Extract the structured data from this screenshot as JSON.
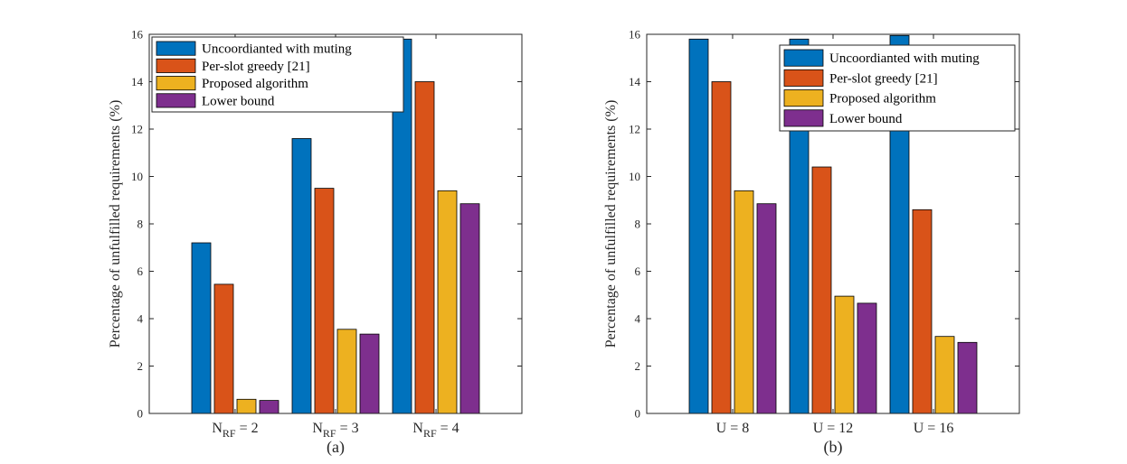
{
  "chart_data": [
    {
      "type": "bar",
      "panel_label": "(a)",
      "ylabel": "Percentage of unfulfilled requirements (%)",
      "xlabel": "",
      "ylim": [
        0,
        16
      ],
      "yticks": [
        0,
        2,
        4,
        6,
        8,
        10,
        12,
        14,
        16
      ],
      "legend_position": "top-left",
      "categories": [
        {
          "base": "N",
          "sub": "RF",
          "rest": " = 2"
        },
        {
          "base": "N",
          "sub": "RF",
          "rest": " = 3"
        },
        {
          "base": "N",
          "sub": "RF",
          "rest": " = 4"
        }
      ],
      "series": [
        {
          "name": "Uncoordianted with muting",
          "color": "#0072BD",
          "values": [
            7.2,
            11.6,
            15.8
          ]
        },
        {
          "name": "Per-slot greedy [21]",
          "color": "#D95319",
          "values": [
            5.45,
            9.5,
            14.0
          ]
        },
        {
          "name": "Proposed algorithm",
          "color": "#EDB120",
          "values": [
            0.6,
            3.55,
            9.4
          ]
        },
        {
          "name": "Lower bound",
          "color": "#7E2F8E",
          "values": [
            0.55,
            3.35,
            8.85
          ]
        }
      ]
    },
    {
      "type": "bar",
      "panel_label": "(b)",
      "ylabel": "Percentage of unfulfilled requirements (%)",
      "xlabel": "",
      "ylim": [
        0,
        16
      ],
      "yticks": [
        0,
        2,
        4,
        6,
        8,
        10,
        12,
        14,
        16
      ],
      "legend_position": "top-right",
      "categories": [
        {
          "base": "U = 8",
          "sub": "",
          "rest": ""
        },
        {
          "base": "U = 12",
          "sub": "",
          "rest": ""
        },
        {
          "base": "U = 16",
          "sub": "",
          "rest": ""
        }
      ],
      "series": [
        {
          "name": "Uncoordianted with muting",
          "color": "#0072BD",
          "values": [
            15.8,
            15.8,
            15.95
          ]
        },
        {
          "name": "Per-slot greedy [21]",
          "color": "#D95319",
          "values": [
            14.0,
            10.4,
            8.6
          ]
        },
        {
          "name": "Proposed algorithm",
          "color": "#EDB120",
          "values": [
            9.4,
            4.95,
            3.25
          ]
        },
        {
          "name": "Lower bound",
          "color": "#7E2F8E",
          "values": [
            8.85,
            4.65,
            3.0
          ]
        }
      ]
    }
  ]
}
